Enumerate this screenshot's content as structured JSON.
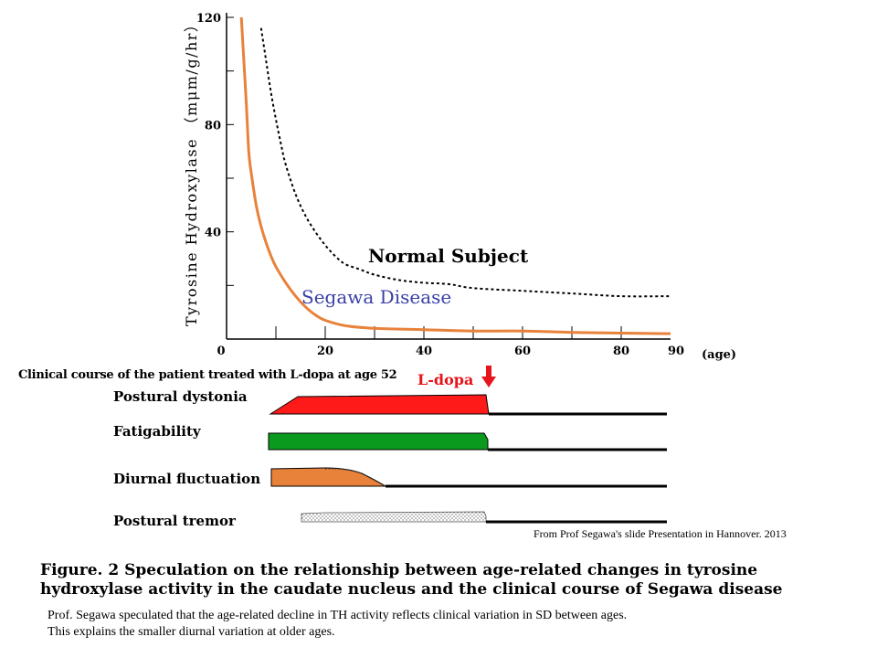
{
  "chart_data": {
    "type": "line",
    "ylabel": "Tyrosine Hydroxylase （mμm/g/hr）",
    "xlabel": "(age)",
    "xlim": [
      0,
      90
    ],
    "ylim": [
      0,
      120
    ],
    "x_ticks": [
      0,
      20,
      40,
      60,
      80,
      90
    ],
    "y_ticks": [
      40,
      80,
      120
    ],
    "grid": false,
    "series": [
      {
        "name": "Normal Subject",
        "style": "dotted",
        "color": "#000000",
        "points": [
          [
            7,
            116
          ],
          [
            8,
            104
          ],
          [
            9,
            92
          ],
          [
            10,
            82
          ],
          [
            11,
            73
          ],
          [
            12,
            65
          ],
          [
            14,
            54
          ],
          [
            16,
            46
          ],
          [
            18,
            40
          ],
          [
            20,
            35
          ],
          [
            22,
            31
          ],
          [
            24,
            28
          ],
          [
            27,
            26
          ],
          [
            30,
            24
          ],
          [
            35,
            22
          ],
          [
            40,
            21
          ],
          [
            45,
            20.5
          ],
          [
            50,
            19
          ],
          [
            60,
            18
          ],
          [
            70,
            17
          ],
          [
            80,
            16
          ],
          [
            90,
            16
          ]
        ]
      },
      {
        "name": "Segawa Disease",
        "style": "solid",
        "color": "#e8823a",
        "points": [
          [
            3,
            120
          ],
          [
            3.5,
            104
          ],
          [
            4,
            88
          ],
          [
            4.5,
            70
          ],
          [
            5,
            62
          ],
          [
            6,
            50
          ],
          [
            7,
            42
          ],
          [
            8,
            36
          ],
          [
            9,
            31
          ],
          [
            10,
            27
          ],
          [
            12,
            21
          ],
          [
            14,
            16
          ],
          [
            16,
            12
          ],
          [
            18,
            9
          ],
          [
            20,
            7
          ],
          [
            24,
            5
          ],
          [
            30,
            4
          ],
          [
            40,
            3.5
          ],
          [
            50,
            3
          ],
          [
            60,
            3
          ],
          [
            70,
            2.5
          ],
          [
            80,
            2.2
          ],
          [
            90,
            2
          ]
        ]
      }
    ]
  },
  "clinical": {
    "heading": "Clinical course of the patient treated with L-dopa at age 52",
    "ldopa_label": "L-dopa",
    "arrow_color": "#e8141b",
    "rows": [
      {
        "label": "Postural dystonia",
        "color": "#ff1a1a"
      },
      {
        "label": "Fatigability",
        "color": "#0a9a1e"
      },
      {
        "label": "Diurnal fluctuation",
        "color": "#e8823a"
      },
      {
        "label": "Postural tremor",
        "color": "dotted"
      }
    ]
  },
  "source_note": "From Prof Segawa's slide Presentation in Hannover. 2013",
  "figure_title": "Figure. 2 Speculation on the relationship between age-related changes in tyrosine hydroxylase activity in the caudate nucleus and the clinical course of Segawa disease",
  "caption_line1": "Prof. Segawa speculated that the age-related decline in TH activity reflects clinical variation in SD between ages.",
  "caption_line2": "This explains the smaller diurnal variation at older ages."
}
